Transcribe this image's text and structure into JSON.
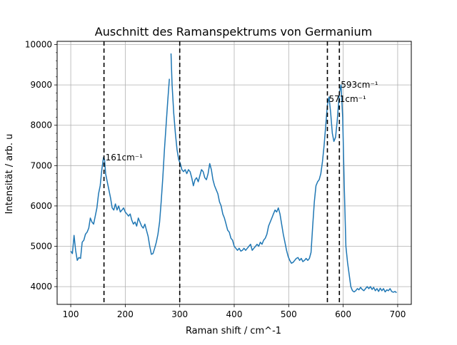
{
  "chart_data": {
    "type": "line",
    "title": "Auschnitt des Ramanspektrums von Germanium",
    "xlabel": "Raman shift / cm^-1",
    "ylabel": "Intensität / arb. u",
    "xlim": [
      75,
      725
    ],
    "ylim": [
      3560,
      10080
    ],
    "grid": true,
    "xticks": [
      100,
      200,
      300,
      400,
      500,
      600,
      700
    ],
    "yticks": [
      4000,
      5000,
      6000,
      7000,
      8000,
      9000,
      10000
    ],
    "line_color": "#1f77b4",
    "series": [
      {
        "segments": [
          {
            "x": [
              100,
              103,
              106,
              109,
              112,
              115,
              118,
              121,
              124,
              127,
              130,
              133,
              136,
              139,
              142,
              145,
              148,
              151,
              154,
              157,
              160,
              162,
              164,
              167,
              170,
              173,
              176,
              179,
              182,
              185,
              188,
              191,
              194,
              197,
              200,
              203,
              206,
              209,
              212,
              215,
              218,
              221,
              224,
              227,
              230,
              233,
              236,
              239,
              242,
              245,
              248,
              251,
              254,
              257,
              260,
              263,
              266,
              269,
              272,
              275,
              278,
              281
            ],
            "y": [
              4880,
              4820,
              5270,
              4900,
              4650,
              4720,
              4700,
              5100,
              5150,
              5300,
              5350,
              5450,
              5700,
              5600,
              5550,
              5750,
              5950,
              6300,
              6500,
              6900,
              7200,
              7150,
              6800,
              6600,
              6400,
              6200,
              5950,
              5900,
              6050,
              5900,
              6000,
              5850,
              5900,
              5950,
              5850,
              5800,
              5750,
              5800,
              5650,
              5550,
              5600,
              5500,
              5700,
              5600,
              5500,
              5450,
              5550,
              5400,
              5250,
              5000,
              4800,
              4820,
              4950,
              5100,
              5300,
              5600,
              6100,
              6700,
              7400,
              8000,
              8600,
              9150
            ]
          },
          {
            "x": [
              284,
              286,
              289,
              292,
              295,
              298,
              301,
              304,
              307,
              310,
              313,
              316,
              319,
              322,
              325,
              328,
              331,
              334,
              337,
              340,
              343,
              346,
              349,
              352,
              355,
              358,
              361,
              364,
              367,
              370,
              373,
              376,
              379,
              382,
              385,
              388,
              391,
              394,
              397,
              400,
              403,
              406,
              409,
              412,
              415,
              418,
              421,
              424,
              427,
              430,
              433,
              436,
              439,
              442,
              445,
              448,
              451,
              454,
              457,
              460,
              463,
              466,
              469,
              472,
              475,
              478,
              481,
              484,
              487,
              490,
              493,
              496,
              499,
              502,
              505,
              508,
              511,
              514,
              517,
              520,
              523,
              526,
              529,
              532,
              535,
              538,
              541,
              544,
              547,
              550,
              553,
              556,
              559,
              562,
              565,
              568,
              571,
              574,
              577,
              580,
              583,
              586,
              589,
              593,
              596,
              599,
              602,
              605,
              608,
              611,
              614,
              617,
              620,
              623,
              626,
              629,
              632,
              635,
              638,
              641,
              644,
              647,
              650,
              653,
              656,
              659,
              662,
              665,
              668,
              671,
              674,
              677,
              680,
              683,
              686,
              689,
              692,
              695,
              698
            ],
            "y": [
              9780,
              9000,
              8300,
              7800,
              7400,
              7150,
              7050,
              6900,
              6850,
              6900,
              6800,
              6900,
              6850,
              6700,
              6500,
              6650,
              6700,
              6600,
              6750,
              6900,
              6850,
              6700,
              6650,
              6800,
              7050,
              6900,
              6650,
              6500,
              6400,
              6300,
              6100,
              6000,
              5800,
              5700,
              5550,
              5400,
              5350,
              5200,
              5150,
              5000,
              4950,
              4900,
              4950,
              4880,
              4900,
              4950,
              4900,
              4950,
              5000,
              5050,
              4900,
              4950,
              5000,
              5050,
              5000,
              5100,
              5050,
              5150,
              5200,
              5300,
              5500,
              5600,
              5700,
              5800,
              5900,
              5850,
              5950,
              5800,
              5550,
              5300,
              5100,
              4900,
              4750,
              4650,
              4580,
              4600,
              4650,
              4700,
              4720,
              4650,
              4700,
              4620,
              4650,
              4700,
              4650,
              4700,
              4850,
              5500,
              6100,
              6500,
              6600,
              6650,
              6800,
              7100,
              7500,
              8000,
              8500,
              8700,
              8300,
              7800,
              7600,
              7700,
              8100,
              8800,
              9000,
              8200,
              6500,
              5000,
              4600,
              4300,
              4000,
              3900,
              3870,
              3900,
              3950,
              3920,
              3980,
              3930,
              3900,
              3950,
              4000,
              3950,
              4000,
              3930,
              3980,
              3900,
              3950,
              3880,
              3960,
              3900,
              3950,
              3870,
              3920,
              3900,
              3950,
              3880,
              3860,
              3880,
              3850
            ]
          }
        ]
      }
    ],
    "vlines": [
      161,
      300,
      571,
      593
    ],
    "vline_color": "#000000",
    "annotations": [
      {
        "text": "161cm⁻¹",
        "x": 161,
        "y": 7200
      },
      {
        "text": "571cm⁻¹",
        "x": 571,
        "y": 8650
      },
      {
        "text": "593cm⁻¹",
        "x": 593,
        "y": 9000
      }
    ]
  }
}
